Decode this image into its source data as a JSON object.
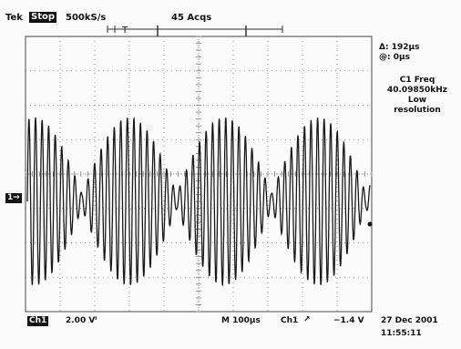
{
  "header": {
    "brand": "Tek",
    "run_state": "Stop",
    "sample_rate": "500kS/s",
    "acquisitions": "45 Acqs"
  },
  "cursor_readout": {
    "delta": "Δ: 192µs",
    "at": "@: 0µs"
  },
  "measurement": {
    "label": "C1 Freq",
    "value": "40.09850kHz",
    "note_line1": "Low",
    "note_line2": "resolution"
  },
  "channel_marker": "1→",
  "footer": {
    "channel": "Ch1",
    "volts_div": "2.00 Vˡ",
    "timebase": "M 100µs",
    "trigger_source": "Ch1",
    "trigger_slope": "↗",
    "trigger_level": "−1.4 V",
    "date": "27 Dec 2001",
    "time": "11:55:11"
  },
  "colors": {
    "trace": "#1a1a1a",
    "grid": "#7d7d7d",
    "background": "#fbfbfb"
  },
  "icons": [
    "trigger-position-icon",
    "channel-ground-marker-icon",
    "trigger-slope-icon"
  ]
}
